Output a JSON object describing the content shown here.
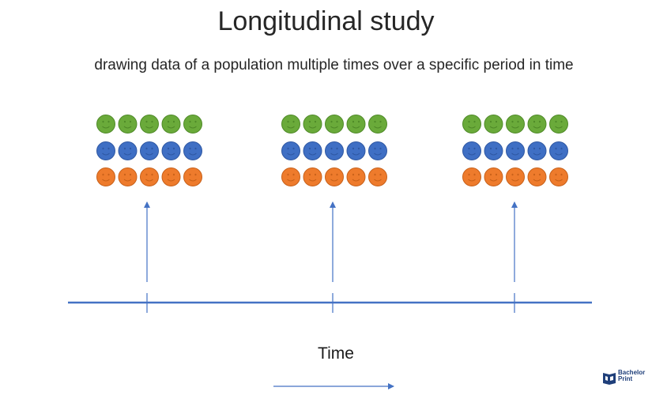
{
  "title": "Longitudinal study",
  "subtitle": "drawing data of a population multiple times over a specific period in time",
  "time_label": "Time",
  "logo": {
    "line1": "Bachelor",
    "line2": "Print"
  },
  "colors": {
    "green": "#6aaa3a",
    "blue": "#3f6fc4",
    "orange": "#ee7b2c",
    "line": "#4472c4",
    "text": "#262626"
  },
  "population": {
    "rows": [
      "green",
      "blue",
      "orange"
    ],
    "faces_per_row": 5,
    "samples": 3
  }
}
